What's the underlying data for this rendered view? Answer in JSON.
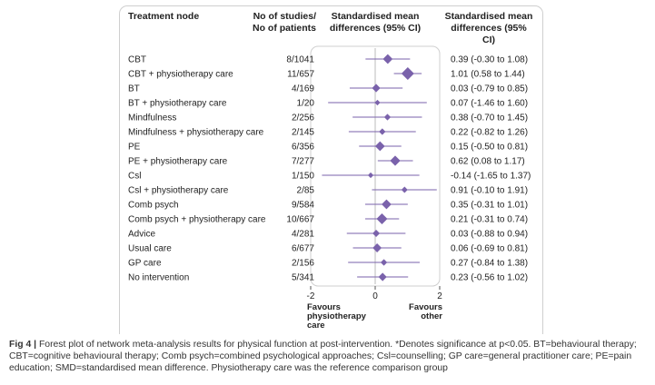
{
  "headers": {
    "node": "Treatment node",
    "studies": "No of studies/\nNo of patients",
    "smd_plot": "Standardised mean\ndifferences (95% CI)",
    "smd_text": "Standardised mean\ndifferences (95% CI)"
  },
  "caption": {
    "label": "Fig 4 | ",
    "text": "Forest plot of network meta-analysis results for physical function at post-intervention. *Denotes significance at p<0.05. BT=behavioural therapy; CBT=cognitive behavioural therapy; Comb psych=combined psychological approaches; Csl=counselling; GP care=general practitioner care; PE=pain education; SMD=standardised mean difference. Physiotherapy care was the reference comparison group"
  },
  "colors": {
    "marker": "#7a62ab",
    "axis": "#555555",
    "reference_line": "#bbbbbb",
    "box_border": "#cfcfcf"
  },
  "chart_data": {
    "type": "forest",
    "x_ticks": [
      "-2",
      "0",
      "2"
    ],
    "xlim": [
      -2,
      2
    ],
    "reference_value": 0,
    "favours_left": "Favours\nphysiotherapy\ncare",
    "favours_right": "Favours\nother",
    "rows": [
      {
        "node": "CBT",
        "studies": "8/1041",
        "est": 0.39,
        "lo": -0.3,
        "hi": 1.08,
        "label": "0.39 (-0.30 to 1.08)",
        "weight": 0.7
      },
      {
        "node": "CBT + physiotherapy care",
        "studies": "11/657",
        "est": 1.01,
        "lo": 0.58,
        "hi": 1.44,
        "label": "1.01 (0.58 to 1.44)",
        "weight": 1.0
      },
      {
        "node": "BT",
        "studies": "4/169",
        "est": 0.03,
        "lo": -0.79,
        "hi": 0.85,
        "label": "0.03 (-0.79 to 0.85)",
        "weight": 0.55
      },
      {
        "node": "BT + physiotherapy care",
        "studies": "1/20",
        "est": 0.07,
        "lo": -1.46,
        "hi": 1.6,
        "label": "0.07 (-1.46 to 1.60)",
        "weight": 0.28
      },
      {
        "node": "Mindfulness",
        "studies": "2/256",
        "est": 0.38,
        "lo": -0.7,
        "hi": 1.45,
        "label": "0.38 (-0.70 to 1.45)",
        "weight": 0.38
      },
      {
        "node": "Mindfulness + physiotherapy care",
        "studies": "2/145",
        "est": 0.22,
        "lo": -0.82,
        "hi": 1.26,
        "label": "0.22 (-0.82 to 1.26)",
        "weight": 0.38
      },
      {
        "node": "PE",
        "studies": "6/356",
        "est": 0.15,
        "lo": -0.5,
        "hi": 0.81,
        "label": "0.15 (-0.50 to 0.81)",
        "weight": 0.7
      },
      {
        "node": "PE + physiotherapy care",
        "studies": "7/277",
        "est": 0.62,
        "lo": 0.08,
        "hi": 1.17,
        "label": "0.62 (0.08 to 1.17)",
        "weight": 0.75
      },
      {
        "node": "Csl",
        "studies": "1/150",
        "est": -0.14,
        "lo": -1.65,
        "hi": 1.37,
        "label": "-0.14 (-1.65 to 1.37)",
        "weight": 0.28
      },
      {
        "node": "Csl + physiotherapy care",
        "studies": "2/85",
        "est": 0.91,
        "lo": -0.1,
        "hi": 1.91,
        "label": "0.91 (-0.10 to 1.91)",
        "weight": 0.35
      },
      {
        "node": "Comb psych",
        "studies": "9/584",
        "est": 0.35,
        "lo": -0.31,
        "hi": 1.01,
        "label": "0.35 (-0.31 to 1.01)",
        "weight": 0.7
      },
      {
        "node": "Comb psych + physiotherapy care",
        "studies": "10/667",
        "est": 0.21,
        "lo": -0.31,
        "hi": 0.74,
        "label": "0.21 (-0.31 to 0.74)",
        "weight": 0.82
      },
      {
        "node": "Advice",
        "studies": "4/281",
        "est": 0.03,
        "lo": -0.88,
        "hi": 0.94,
        "label": "0.03 (-0.88 to 0.94)",
        "weight": 0.45
      },
      {
        "node": "Usual care",
        "studies": "6/677",
        "est": 0.06,
        "lo": -0.69,
        "hi": 0.81,
        "label": "0.06 (-0.69 to 0.81)",
        "weight": 0.62
      },
      {
        "node": "GP care",
        "studies": "2/156",
        "est": 0.27,
        "lo": -0.84,
        "hi": 1.38,
        "label": "0.27 (-0.84 to 1.38)",
        "weight": 0.38
      },
      {
        "node": "No intervention",
        "studies": "5/341",
        "est": 0.23,
        "lo": -0.56,
        "hi": 1.02,
        "label": "0.23 (-0.56 to 1.02)",
        "weight": 0.55
      }
    ]
  }
}
